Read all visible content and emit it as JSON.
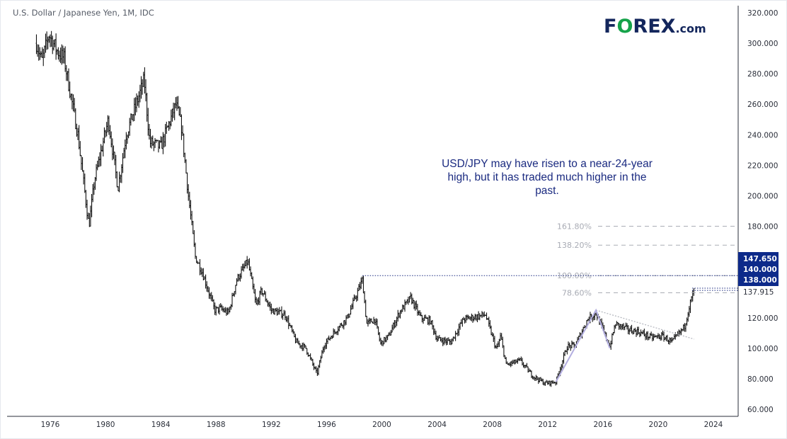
{
  "header": {
    "title": "U.S. Dollar / Japanese Yen, 1M, IDC"
  },
  "logo": {
    "text_a": "F",
    "text_o": "O",
    "text_b": "REX",
    ".com": ".com",
    "brand_color": "#13265c",
    "accent_color": "#16a34a"
  },
  "annotation": {
    "text": "USD/JPY may have risen to a near-24-year high, but it has traded much higher in the past.",
    "color": "#1a2a80"
  },
  "chart_data": {
    "type": "ohlc-bar",
    "symbol": "USD/JPY",
    "interval": "1M",
    "source": "IDC",
    "ylim": [
      60,
      320
    ],
    "xlim": [
      1973.5,
      2026.7
    ],
    "yticks": [
      60,
      80,
      100,
      120,
      140,
      160,
      180,
      200,
      220,
      240,
      260,
      280,
      300,
      320
    ],
    "ytick_labels": [
      "60.000",
      "80.000",
      "100.000",
      "120.000",
      "",
      "",
      "180.000",
      "200.000",
      "220.000",
      "240.000",
      "260.000",
      "280.000",
      "300.000",
      "320.000"
    ],
    "xticks": [
      1976,
      1980,
      1984,
      1988,
      1992,
      1996,
      2000,
      2004,
      2008,
      2012,
      2016,
      2020,
      2024
    ],
    "price_path": [
      [
        1975.0,
        300
      ],
      [
        1975.4,
        288
      ],
      [
        1975.9,
        306
      ],
      [
        1976.5,
        295
      ],
      [
        1977.0,
        290
      ],
      [
        1977.5,
        265
      ],
      [
        1978.0,
        240
      ],
      [
        1978.8,
        180
      ],
      [
        1979.2,
        210
      ],
      [
        1980.2,
        250
      ],
      [
        1980.9,
        205
      ],
      [
        1981.5,
        240
      ],
      [
        1982.8,
        276
      ],
      [
        1983.2,
        235
      ],
      [
        1984.0,
        232
      ],
      [
        1985.1,
        260
      ],
      [
        1985.5,
        245
      ],
      [
        1986.0,
        200
      ],
      [
        1986.5,
        160
      ],
      [
        1987.0,
        150
      ],
      [
        1987.9,
        125
      ],
      [
        1988.3,
        126
      ],
      [
        1988.9,
        123
      ],
      [
        1989.5,
        145
      ],
      [
        1990.3,
        157
      ],
      [
        1990.9,
        128
      ],
      [
        1991.3,
        138
      ],
      [
        1992.0,
        125
      ],
      [
        1993.0,
        122
      ],
      [
        1993.8,
        104
      ],
      [
        1994.5,
        100
      ],
      [
        1995.3,
        83
      ],
      [
        1995.8,
        102
      ],
      [
        1996.5,
        110
      ],
      [
        1997.5,
        120
      ],
      [
        1998.6,
        145
      ],
      [
        1998.9,
        116
      ],
      [
        1999.5,
        119
      ],
      [
        1999.9,
        103
      ],
      [
        2000.5,
        108
      ],
      [
        2001.3,
        124
      ],
      [
        2002.1,
        133
      ],
      [
        2002.8,
        120
      ],
      [
        2003.5,
        118
      ],
      [
        2004.0,
        106
      ],
      [
        2005.0,
        104
      ],
      [
        2005.9,
        119
      ],
      [
        2007.5,
        122
      ],
      [
        2008.3,
        99
      ],
      [
        2008.6,
        108
      ],
      [
        2009.0,
        89
      ],
      [
        2010.0,
        92
      ],
      [
        2010.9,
        82
      ],
      [
        2011.8,
        77
      ],
      [
        2012.6,
        78
      ],
      [
        2013.4,
        101
      ],
      [
        2014.0,
        102
      ],
      [
        2014.9,
        119
      ],
      [
        2015.5,
        123
      ],
      [
        2016.5,
        101
      ],
      [
        2016.9,
        116
      ],
      [
        2017.9,
        112
      ],
      [
        2018.5,
        111
      ],
      [
        2019.5,
        107
      ],
      [
        2020.3,
        108
      ],
      [
        2021.0,
        104
      ],
      [
        2021.9,
        114
      ],
      [
        2022.3,
        129
      ],
      [
        2022.6,
        137.9
      ]
    ],
    "trendline": {
      "from": [
        2015.5,
        125
      ],
      "to": [
        2022.6,
        106
      ],
      "color": "#b0b3bb"
    },
    "swing_lines": {
      "points": [
        [
          2012.6,
          78
        ],
        [
          2015.5,
          125
        ],
        [
          2016.5,
          100
        ]
      ],
      "color": "#b3aee0"
    },
    "fib_levels": [
      {
        "label": "161.80%",
        "value": 180
      },
      {
        "label": "138.20%",
        "value": 167.6
      },
      {
        "label": "100.00%",
        "value": 147.65
      },
      {
        "label": "78.60%",
        "value": 136.4
      }
    ],
    "horizontal_line": {
      "value": 147.65,
      "from": 1998.6,
      "color": "#1a2a80"
    },
    "price_labels_box": [
      "147.650",
      "140.000",
      "138.000"
    ],
    "price_labels_box_color": "#0d2a8a",
    "last_price": "137.915",
    "short_lines": [
      138.0,
      137.915
    ]
  }
}
